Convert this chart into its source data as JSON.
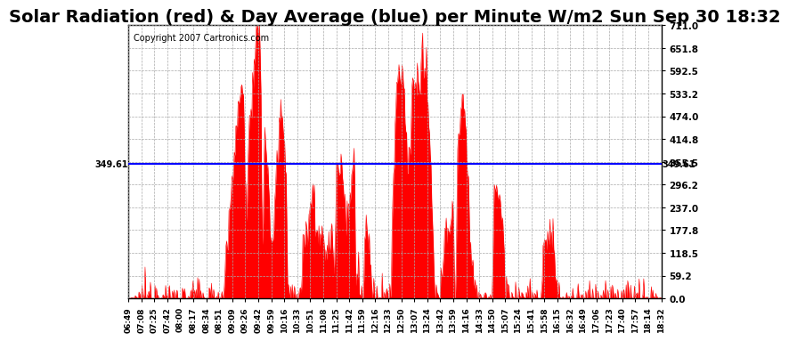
{
  "title": "Solar Radiation (red) & Day Average (blue) per Minute W/m2 Sun Sep 30 18:32",
  "copyright": "Copyright 2007 Cartronics.com",
  "avg_value": 349.61,
  "y_ticks": [
    0.0,
    59.2,
    118.5,
    177.8,
    237.0,
    296.2,
    355.5,
    414.8,
    474.0,
    533.2,
    592.5,
    651.8,
    711.0
  ],
  "y_min": 0.0,
  "y_max": 711.0,
  "fill_color": "red",
  "avg_line_color": "blue",
  "background_color": "white",
  "grid_color": "#aaaaaa",
  "title_fontsize": 14,
  "x_labels": [
    "06:49",
    "07:08",
    "07:25",
    "07:42",
    "08:00",
    "08:17",
    "08:34",
    "08:51",
    "09:09",
    "09:26",
    "09:42",
    "09:59",
    "10:16",
    "10:33",
    "10:51",
    "11:08",
    "11:25",
    "11:42",
    "11:59",
    "12:16",
    "12:33",
    "12:50",
    "13:07",
    "13:24",
    "13:42",
    "13:59",
    "14:16",
    "14:33",
    "14:50",
    "15:07",
    "15:24",
    "15:41",
    "15:58",
    "16:15",
    "16:32",
    "16:49",
    "17:06",
    "17:23",
    "17:40",
    "17:57",
    "18:14",
    "18:32"
  ]
}
